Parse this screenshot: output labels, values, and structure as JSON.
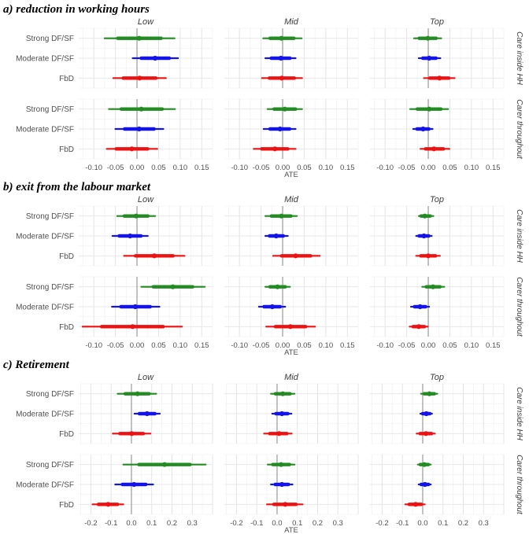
{
  "figure": {
    "background": "#ffffff",
    "axis_label": "ATE",
    "panel_count": 3
  },
  "colors": {
    "strong_dfsf": "#228B22",
    "moderate_dfsf": "#1414E8",
    "fbd": "#EE1111",
    "zero_line": "#9a9a9a",
    "grid_major": "#e4e4e4",
    "grid_minor": "#f2f2f2",
    "axis_text": "#4f4f4f",
    "facet_text": "#3c3c3c"
  },
  "chart_data": [
    {
      "type": "scatter",
      "variant": "forest-pointrange",
      "title": "a) reduction in working hours",
      "xlabel": "ATE",
      "col_facets": [
        "Low",
        "Mid",
        "Top"
      ],
      "row_facets": [
        "Care inside HH",
        "Carer throughout"
      ],
      "categories": [
        "Strong DF/SF",
        "Moderate DF/SF",
        "FbD"
      ],
      "category_colors": {
        "Strong DF/SF": "#228B22",
        "Moderate DF/SF": "#1414E8",
        "FbD": "#EE1111"
      },
      "xlim": [
        -0.135,
        0.175
      ],
      "major_step": 0.05,
      "minor_step": 0.025,
      "xticks": [
        -0.1,
        -0.05,
        0,
        0.05,
        0.1,
        0.15
      ],
      "xtick_labels": [
        "-0.10",
        "-0.05",
        "0.00",
        "0.05",
        "0.10",
        "0.15"
      ],
      "grid": "major+minor",
      "zero_line": 0,
      "legend_position": "none",
      "values": {
        "Care inside HH": {
          "Low": {
            "Strong DF/SF": {
              "lo": -0.075,
              "est": 0.005,
              "hi": 0.087
            },
            "Moderate DF/SF": {
              "lo": -0.01,
              "est": 0.042,
              "hi": 0.095
            },
            "FbD": {
              "lo": -0.055,
              "est": 0.006,
              "hi": 0.067
            }
          },
          "Mid": {
            "Strong DF/SF": {
              "lo": -0.045,
              "est": -0.003,
              "hi": 0.044
            },
            "Moderate DF/SF": {
              "lo": -0.04,
              "est": -0.004,
              "hi": 0.03
            },
            "FbD": {
              "lo": -0.048,
              "est": -0.002,
              "hi": 0.045
            }
          },
          "Top": {
            "Strong DF/SF": {
              "lo": -0.033,
              "est": -0.001,
              "hi": 0.03
            },
            "Moderate DF/SF": {
              "lo": -0.022,
              "est": 0.002,
              "hi": 0.028
            },
            "FbD": {
              "lo": -0.01,
              "est": 0.026,
              "hi": 0.061
            }
          }
        },
        "Carer throughout": {
          "Low": {
            "Strong DF/SF": {
              "lo": -0.065,
              "est": 0.01,
              "hi": 0.088
            },
            "Moderate DF/SF": {
              "lo": -0.05,
              "est": 0.005,
              "hi": 0.061
            },
            "FbD": {
              "lo": -0.07,
              "est": -0.012,
              "hi": 0.047
            }
          },
          "Mid": {
            "Strong DF/SF": {
              "lo": -0.035,
              "est": 0.005,
              "hi": 0.045
            },
            "Moderate DF/SF": {
              "lo": -0.044,
              "est": -0.006,
              "hi": 0.03
            },
            "FbD": {
              "lo": -0.067,
              "est": -0.018,
              "hi": 0.03
            }
          },
          "Top": {
            "Strong DF/SF": {
              "lo": -0.042,
              "est": 0.002,
              "hi": 0.046
            },
            "Moderate DF/SF": {
              "lo": -0.035,
              "est": -0.012,
              "hi": 0.01
            },
            "FbD": {
              "lo": -0.018,
              "est": 0.013,
              "hi": 0.049
            }
          }
        }
      }
    },
    {
      "type": "scatter",
      "variant": "forest-pointrange",
      "title": "b) exit from the labour market",
      "xlabel": "ATE",
      "col_facets": [
        "Low",
        "Mid",
        "Top"
      ],
      "row_facets": [
        "Care inside HH",
        "Carer throughout"
      ],
      "categories": [
        "Strong DF/SF",
        "Moderate DF/SF",
        "FbD"
      ],
      "category_colors": {
        "Strong DF/SF": "#228B22",
        "Moderate DF/SF": "#1414E8",
        "FbD": "#EE1111"
      },
      "xlim": [
        -0.135,
        0.175
      ],
      "major_step": 0.05,
      "minor_step": 0.025,
      "xticks": [
        -0.1,
        -0.05,
        0,
        0.05,
        0.1,
        0.15
      ],
      "xtick_labels": [
        "-0.10",
        "-0.05",
        "0.00",
        "0.05",
        "0.10",
        "0.15"
      ],
      "grid": "major+minor",
      "zero_line": 0,
      "legend_position": "none",
      "values": {
        "Care inside HH": {
          "Low": {
            "Strong DF/SF": {
              "lo": -0.046,
              "est": -0.002,
              "hi": 0.042
            },
            "Moderate DF/SF": {
              "lo": -0.057,
              "est": -0.016,
              "hi": 0.025
            },
            "FbD": {
              "lo": -0.03,
              "est": 0.04,
              "hi": 0.11
            }
          },
          "Mid": {
            "Strong DF/SF": {
              "lo": -0.04,
              "est": -0.003,
              "hi": 0.033
            },
            "Moderate DF/SF": {
              "lo": -0.04,
              "est": -0.015,
              "hi": 0.012
            },
            "FbD": {
              "lo": -0.022,
              "est": 0.03,
              "hi": 0.086
            }
          },
          "Top": {
            "Strong DF/SF": {
              "lo": -0.022,
              "est": -0.008,
              "hi": 0.012
            },
            "Moderate DF/SF": {
              "lo": -0.028,
              "est": -0.01,
              "hi": 0.008
            },
            "FbD": {
              "lo": -0.028,
              "est": 0.0,
              "hi": 0.027
            }
          }
        },
        "Carer throughout": {
          "Low": {
            "Strong DF/SF": {
              "lo": 0.01,
              "est": 0.083,
              "hi": 0.157
            },
            "Moderate DF/SF": {
              "lo": -0.058,
              "est": -0.004,
              "hi": 0.052
            },
            "FbD": {
              "lo": -0.126,
              "est": -0.01,
              "hi": 0.104
            }
          },
          "Mid": {
            "Strong DF/SF": {
              "lo": -0.04,
              "est": -0.012,
              "hi": 0.017
            },
            "Moderate DF/SF": {
              "lo": -0.055,
              "est": -0.024,
              "hi": 0.006
            },
            "FbD": {
              "lo": -0.038,
              "est": 0.018,
              "hi": 0.075
            }
          },
          "Top": {
            "Strong DF/SF": {
              "lo": -0.014,
              "est": 0.011,
              "hi": 0.037
            },
            "Moderate DF/SF": {
              "lo": -0.04,
              "est": -0.019,
              "hi": 0.002
            },
            "FbD": {
              "lo": -0.043,
              "est": -0.022,
              "hi": -0.001
            }
          }
        }
      }
    },
    {
      "type": "scatter",
      "variant": "forest-pointrange",
      "title": "c) Retirement",
      "xlabel": "ATE",
      "col_facets": [
        "Low",
        "Mid",
        "Top"
      ],
      "row_facets": [
        "Care inside HH",
        "Carer throughout"
      ],
      "categories": [
        "Strong DF/SF",
        "Moderate DF/SF",
        "FbD"
      ],
      "category_colors": {
        "Strong DF/SF": "#228B22",
        "Moderate DF/SF": "#1414E8",
        "FbD": "#EE1111"
      },
      "xlim": [
        -0.26,
        0.4
      ],
      "major_step": 0.1,
      "minor_step": 0.05,
      "xticks": [
        -0.2,
        -0.1,
        0,
        0.1,
        0.2,
        0.3
      ],
      "xtick_labels": [
        "-0.2",
        "-0.1",
        "0.0",
        "0.1",
        "0.2",
        "0.3"
      ],
      "grid": "major+minor",
      "zero_line": 0,
      "legend_position": "none",
      "values": {
        "Care inside HH": {
          "Low": {
            "Strong DF/SF": {
              "lo": -0.068,
              "est": 0.03,
              "hi": 0.122
            },
            "Moderate DF/SF": {
              "lo": 0.015,
              "est": 0.077,
              "hi": 0.14
            },
            "FbD": {
              "lo": -0.092,
              "est": 0.001,
              "hi": 0.094
            }
          },
          "Mid": {
            "Strong DF/SF": {
              "lo": -0.03,
              "est": 0.028,
              "hi": 0.086
            },
            "Moderate DF/SF": {
              "lo": -0.024,
              "est": 0.024,
              "hi": 0.071
            },
            "FbD": {
              "lo": -0.064,
              "est": 0.01,
              "hi": 0.072
            }
          },
          "Top": {
            "Strong DF/SF": {
              "lo": -0.008,
              "est": 0.033,
              "hi": 0.072
            },
            "Moderate DF/SF": {
              "lo": -0.012,
              "est": 0.018,
              "hi": 0.046
            },
            "FbD": {
              "lo": -0.03,
              "est": 0.016,
              "hi": 0.06
            }
          }
        },
        "Carer throughout": {
          "Low": {
            "Strong DF/SF": {
              "lo": -0.04,
              "est": 0.163,
              "hi": 0.366
            },
            "Moderate DF/SF": {
              "lo": -0.08,
              "est": 0.013,
              "hi": 0.107
            },
            "FbD": {
              "lo": -0.192,
              "est": -0.115,
              "hi": -0.04
            }
          },
          "Mid": {
            "Strong DF/SF": {
              "lo": -0.046,
              "est": 0.02,
              "hi": 0.086
            },
            "Moderate DF/SF": {
              "lo": -0.03,
              "est": 0.024,
              "hi": 0.076
            },
            "FbD": {
              "lo": -0.05,
              "est": 0.04,
              "hi": 0.126
            }
          },
          "Top": {
            "Strong DF/SF": {
              "lo": -0.024,
              "est": 0.008,
              "hi": 0.04
            },
            "Moderate DF/SF": {
              "lo": -0.02,
              "est": 0.011,
              "hi": 0.04
            },
            "FbD": {
              "lo": -0.086,
              "est": -0.035,
              "hi": 0.01
            }
          }
        }
      }
    }
  ]
}
